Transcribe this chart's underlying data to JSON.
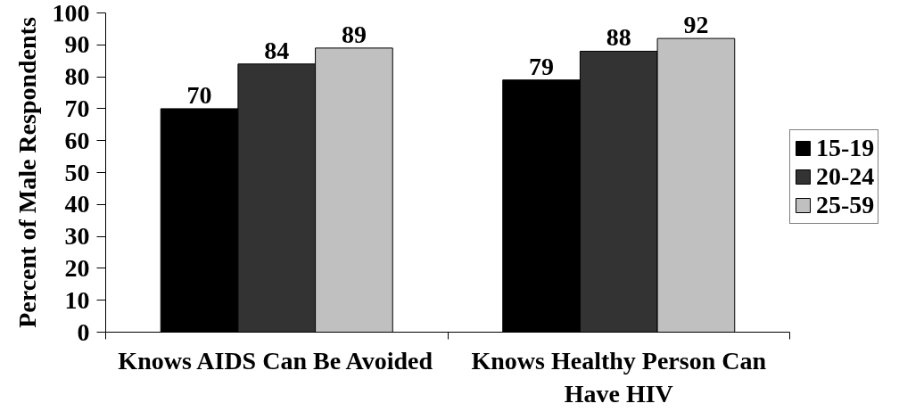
{
  "chart_data": {
    "type": "bar",
    "ylabel": "Percent of Male Respondents",
    "categories": [
      "Knows AIDS Can Be Avoided",
      "Knows Healthy Person Can Have HIV"
    ],
    "series": [
      {
        "name": "15-19",
        "color": "#000000",
        "values": [
          70,
          79
        ]
      },
      {
        "name": "20-24",
        "color": "#333333",
        "values": [
          84,
          88
        ]
      },
      {
        "name": "25-59",
        "color": "#c0c0c0",
        "values": [
          89,
          92
        ]
      }
    ],
    "ylim": [
      0,
      100
    ],
    "yticks": [
      0,
      10,
      20,
      30,
      40,
      50,
      60,
      70,
      80,
      90,
      100
    ],
    "data_labels": true,
    "legend": "right",
    "grid": false
  }
}
